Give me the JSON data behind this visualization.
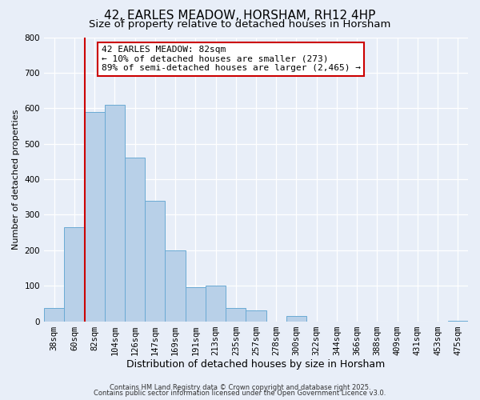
{
  "title": "42, EARLES MEADOW, HORSHAM, RH12 4HP",
  "subtitle": "Size of property relative to detached houses in Horsham",
  "xlabel": "Distribution of detached houses by size in Horsham",
  "ylabel": "Number of detached properties",
  "bar_labels": [
    "38sqm",
    "60sqm",
    "82sqm",
    "104sqm",
    "126sqm",
    "147sqm",
    "169sqm",
    "191sqm",
    "213sqm",
    "235sqm",
    "257sqm",
    "278sqm",
    "300sqm",
    "322sqm",
    "344sqm",
    "366sqm",
    "388sqm",
    "409sqm",
    "431sqm",
    "453sqm",
    "475sqm"
  ],
  "bar_values": [
    38,
    265,
    590,
    610,
    460,
    340,
    200,
    95,
    100,
    38,
    30,
    0,
    14,
    0,
    0,
    0,
    0,
    0,
    0,
    0,
    2
  ],
  "bar_color": "#b8d0e8",
  "bar_edge_color": "#6aaad4",
  "vline_color": "#cc0000",
  "vline_bar_index": 2,
  "ylim": [
    0,
    800
  ],
  "yticks": [
    0,
    100,
    200,
    300,
    400,
    500,
    600,
    700,
    800
  ],
  "annotation_text_line1": "42 EARLES MEADOW: 82sqm",
  "annotation_text_line2": "← 10% of detached houses are smaller (273)",
  "annotation_text_line3": "89% of semi-detached houses are larger (2,465) →",
  "annotation_box_facecolor": "#ffffff",
  "annotation_box_edgecolor": "#cc0000",
  "footnote1": "Contains HM Land Registry data © Crown copyright and database right 2025.",
  "footnote2": "Contains public sector information licensed under the Open Government Licence v3.0.",
  "bg_color": "#e8eef8",
  "grid_color": "#ffffff",
  "title_fontsize": 11,
  "subtitle_fontsize": 9.5,
  "xlabel_fontsize": 9,
  "ylabel_fontsize": 8,
  "tick_fontsize": 7.5,
  "footnote_fontsize": 6,
  "annotation_fontsize": 8
}
